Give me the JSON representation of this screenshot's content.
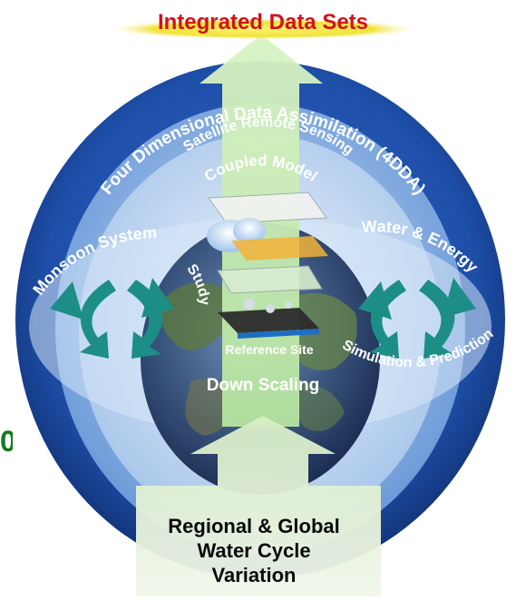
{
  "title": "Integrated Data Sets",
  "outer_ring": "Four Dimensional Data Assimilation (4DDA)",
  "ring2": "Satellite Remote Sensing",
  "ring3": "Coupled Model",
  "left_cycle": "Monsoon System",
  "left_study": "Study",
  "right_cycle": "Water & Energy",
  "right_sub": "Simulation & Prediction",
  "reference_site": "Reference Site",
  "downscaling": "Down Scaling",
  "bottom": {
    "line1": "Regional & Global",
    "line2": "Water Cycle",
    "line3": "Variation"
  },
  "edge_fragment": "0",
  "colors": {
    "title_red": "#d4111a",
    "title_glow": "#f4ea4a",
    "outer_blue": "#1a4aa5",
    "ring_light": "#a9c9ec",
    "arrow_green": "#bfe8a5",
    "cycle_teal": "#1d8e86"
  }
}
